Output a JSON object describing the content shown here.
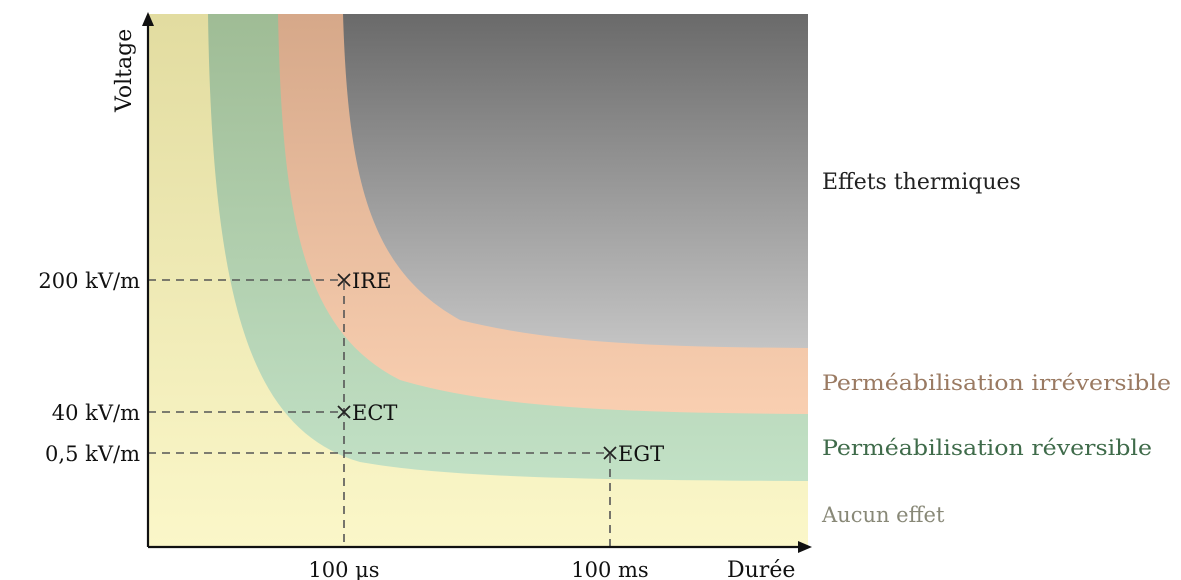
{
  "axes": {
    "y_label": "Voltage",
    "x_label": "Durée"
  },
  "y_ticks": [
    "200 kV/m",
    "40 kV/m",
    "0,5 kV/m"
  ],
  "x_ticks": [
    "100 μs",
    "100 ms"
  ],
  "points": [
    {
      "label": "IRE",
      "x_value": "100 μs",
      "y_value": "200 kV/m"
    },
    {
      "label": "ECT",
      "x_value": "100 μs",
      "y_value": "40 kV/m"
    },
    {
      "label": "EGT",
      "x_value": "100 ms",
      "y_value": "0,5 kV/m"
    }
  ],
  "regions": [
    {
      "label": "Effets thermiques",
      "color": "#8a8a8a"
    },
    {
      "label": "Perméabilisation irréversible",
      "color": "#f5c8a8"
    },
    {
      "label": "Perméabilisation réversible",
      "color": "#bcdcbf"
    },
    {
      "label": "Aucun effet",
      "color": "#f7f1bd"
    }
  ],
  "label_colors": {
    "Effets thermiques": "#222222",
    "Perméabilisation irréversible": "#9a7a62",
    "Perméabilisation réversible": "#3f6b4a",
    "Aucun effet": "#888877"
  }
}
